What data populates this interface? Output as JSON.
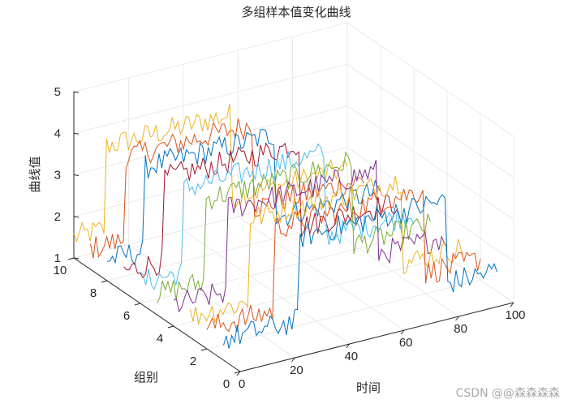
{
  "watermark": "CSDN @@森森森森",
  "chart_data": {
    "type": "line",
    "title": "多组样本值变化曲线",
    "xlabel": "时间",
    "ylabel": "组别",
    "zlabel": "曲线值",
    "xlim": [
      0,
      100
    ],
    "ylim": [
      0,
      10
    ],
    "zlim": [
      1,
      5
    ],
    "xticks": [
      "0",
      "20",
      "40",
      "60",
      "80",
      "100"
    ],
    "yticks": [
      "0",
      "2",
      "4",
      "6",
      "8",
      "10"
    ],
    "zticks": [
      "1",
      "2",
      "3",
      "4",
      "5"
    ],
    "grid": true,
    "noise_amplitude": 0.3,
    "colors": [
      "#0072BD",
      "#D95319",
      "#EDB120",
      "#7E2F8E",
      "#77AC30",
      "#4DBEEE",
      "#A2142F"
    ],
    "series": [
      {
        "group": 1,
        "low": 1.5,
        "high": 3.5,
        "step_up": 28,
        "step_down": 82
      },
      {
        "group": 2,
        "low": 1.5,
        "high": 3.5,
        "step_up": 25,
        "step_down": 80
      },
      {
        "group": 3,
        "low": 1.5,
        "high": 3.5,
        "step_up": 22,
        "step_down": 78
      },
      {
        "group": 4,
        "low": 1.5,
        "high": 3.5,
        "step_up": 20,
        "step_down": 75
      },
      {
        "group": 5,
        "low": 1.5,
        "high": 3.5,
        "step_up": 18,
        "step_down": 72
      },
      {
        "group": 6,
        "low": 1.5,
        "high": 3.5,
        "step_up": 16,
        "step_down": 68
      },
      {
        "group": 7,
        "low": 1.5,
        "high": 3.5,
        "step_up": 15,
        "step_down": 65
      },
      {
        "group": 8,
        "low": 1.5,
        "high": 3.5,
        "step_up": 14,
        "step_down": 62
      },
      {
        "group": 9,
        "low": 1.5,
        "high": 3.5,
        "step_up": 13,
        "step_down": 60
      },
      {
        "group": 10,
        "low": 1.5,
        "high": 3.5,
        "step_up": 12,
        "step_down": 58
      }
    ]
  }
}
